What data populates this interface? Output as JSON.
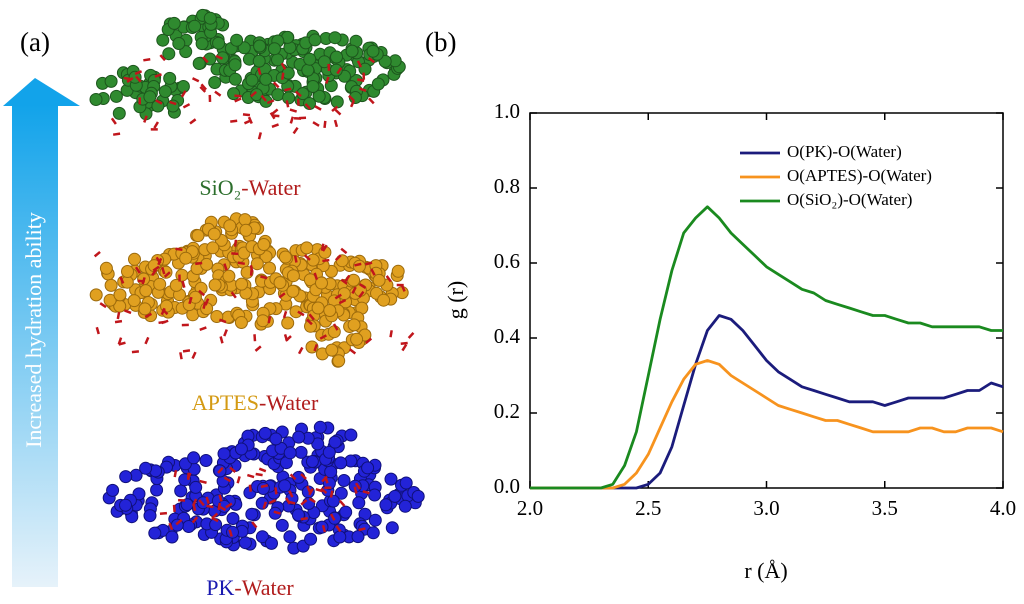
{
  "panel_a": {
    "label": "(a)",
    "arrow_text": "Increased hydration ability",
    "systems": [
      {
        "material": "SiO₂",
        "suffix": "-Water"
      },
      {
        "material": "APTES",
        "suffix": "-Water"
      },
      {
        "material": "PK",
        "suffix": "-Water"
      }
    ]
  },
  "chart_data": {
    "type": "line",
    "label": "(b)",
    "x_label": "r (Å)",
    "y_label": "g (r)",
    "x": [
      2.0,
      2.05,
      2.1,
      2.15,
      2.2,
      2.25,
      2.3,
      2.35,
      2.4,
      2.45,
      2.5,
      2.55,
      2.6,
      2.65,
      2.7,
      2.75,
      2.8,
      2.85,
      2.9,
      2.95,
      3.0,
      3.05,
      3.1,
      3.15,
      3.2,
      3.25,
      3.3,
      3.35,
      3.4,
      3.45,
      3.5,
      3.55,
      3.6,
      3.65,
      3.7,
      3.75,
      3.8,
      3.85,
      3.9,
      3.95,
      4.0
    ],
    "series": [
      {
        "name": "O(PK)-O(Water)",
        "color": "#1b1c7c",
        "values": [
          0,
          0,
          0,
          0,
          0,
          0,
          0,
          0,
          0,
          0,
          0.01,
          0.04,
          0.11,
          0.22,
          0.33,
          0.42,
          0.46,
          0.45,
          0.42,
          0.38,
          0.34,
          0.31,
          0.29,
          0.27,
          0.26,
          0.25,
          0.24,
          0.23,
          0.23,
          0.23,
          0.22,
          0.23,
          0.24,
          0.24,
          0.24,
          0.24,
          0.25,
          0.26,
          0.26,
          0.28,
          0.27
        ]
      },
      {
        "name": "O(APTES)-O(Water)",
        "color": "#f7931e",
        "values": [
          0,
          0,
          0,
          0,
          0,
          0,
          0,
          0,
          0.01,
          0.04,
          0.09,
          0.16,
          0.23,
          0.29,
          0.33,
          0.34,
          0.33,
          0.3,
          0.28,
          0.26,
          0.24,
          0.22,
          0.21,
          0.2,
          0.19,
          0.18,
          0.18,
          0.17,
          0.16,
          0.15,
          0.15,
          0.15,
          0.15,
          0.16,
          0.16,
          0.15,
          0.15,
          0.16,
          0.16,
          0.16,
          0.15
        ]
      },
      {
        "name": "O(SiO₂)-O(Water)",
        "color": "#1a8a1f",
        "values": [
          0,
          0,
          0,
          0,
          0,
          0,
          0,
          0.01,
          0.06,
          0.15,
          0.3,
          0.45,
          0.58,
          0.68,
          0.72,
          0.75,
          0.72,
          0.68,
          0.65,
          0.62,
          0.59,
          0.57,
          0.55,
          0.53,
          0.52,
          0.5,
          0.49,
          0.48,
          0.47,
          0.46,
          0.46,
          0.45,
          0.44,
          0.44,
          0.43,
          0.43,
          0.43,
          0.43,
          0.43,
          0.42,
          0.42
        ]
      }
    ],
    "xlim": [
      2.0,
      4.0
    ],
    "ylim": [
      0.0,
      1.0
    ],
    "xticks": [
      {
        "value": 2.0,
        "label": "2.0"
      },
      2.5,
      {
        "value": 3.0,
        "label": "3.0"
      },
      3.5,
      {
        "value": 4.0,
        "label": "4.0"
      }
    ],
    "yticks": [
      {
        "value": 0.0,
        "label": "0.0"
      },
      0.2,
      0.4,
      0.6,
      0.8,
      {
        "value": 1.0,
        "label": "1.0"
      }
    ],
    "grid": false,
    "legend": "upper right"
  }
}
